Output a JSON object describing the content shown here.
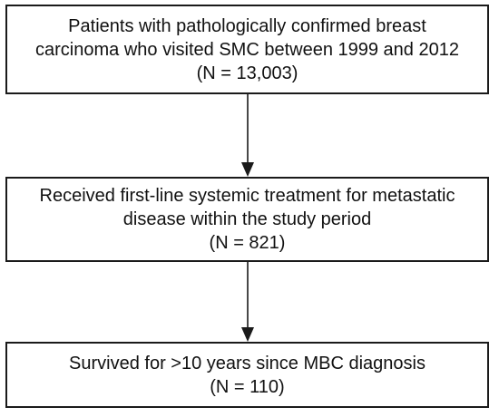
{
  "flowchart": {
    "steps": [
      {
        "lines": [
          "Patients with pathologically confirmed breast",
          "carcinoma who visited SMC between 1999 and 2012",
          "(N = 13,003)"
        ]
      },
      {
        "lines": [
          "Received first-line systemic treatment for metastatic",
          "disease within the study period",
          "(N = 821)"
        ]
      },
      {
        "lines": [
          "Survived for >10 years since MBC diagnosis",
          "(N = 110)"
        ]
      }
    ]
  },
  "colors": {
    "border": "#1a1a1a",
    "arrow": "#1a1a1a",
    "text": "#111111",
    "background": "#ffffff"
  }
}
